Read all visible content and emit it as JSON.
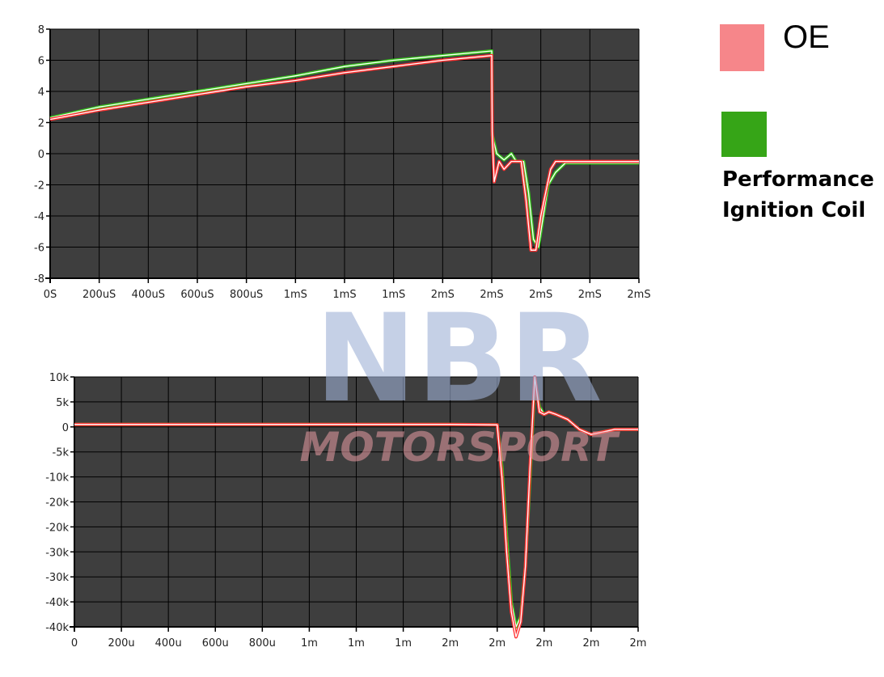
{
  "legend": {
    "items": [
      {
        "label": "OE",
        "color": "#f6868a"
      },
      {
        "label": "Performance Ignition Coil",
        "color": "#36a517"
      }
    ]
  },
  "watermark": {
    "text_top": "NBR",
    "text_bottom": "MOTORSPORT",
    "color_top": "#9fb1d6",
    "color_bottom": "#e89aa3"
  },
  "chart_data": [
    {
      "type": "line",
      "title": "",
      "xlabel": "",
      "ylabel": "",
      "ylim": [
        -8,
        8
      ],
      "xlim": [
        0,
        2400
      ],
      "x_unit": "uS",
      "grid": true,
      "y_ticks": [
        "8",
        "6",
        "4",
        "2",
        "0",
        "-2",
        "-4",
        "-6",
        "-8"
      ],
      "x_ticks": [
        "0S",
        "200uS",
        "400uS",
        "600uS",
        "800uS",
        "1mS",
        "1mS",
        "1mS",
        "2mS",
        "2mS",
        "2mS",
        "2mS",
        "2mS"
      ],
      "series": [
        {
          "name": "Performance Ignition Coil",
          "color": "#36c41c",
          "x": [
            0,
            200,
            400,
            600,
            800,
            1000,
            1200,
            1400,
            1600,
            1800,
            1802,
            1820,
            1850,
            1880,
            1900,
            1930,
            1950,
            1970,
            1990,
            2000,
            2030,
            2060,
            2100,
            2200,
            2400
          ],
          "y": [
            2.3,
            3.0,
            3.5,
            4.0,
            4.5,
            5.0,
            5.6,
            6.0,
            6.3,
            6.6,
            1.2,
            0.0,
            -0.4,
            0.0,
            -0.5,
            -0.5,
            -2.5,
            -5.5,
            -6.0,
            -5.0,
            -2.0,
            -1.2,
            -0.6,
            -0.6,
            -0.6
          ]
        },
        {
          "name": "OE",
          "color": "#ff3030",
          "x": [
            0,
            200,
            400,
            600,
            800,
            1000,
            1200,
            1400,
            1600,
            1800,
            1802,
            1810,
            1830,
            1850,
            1880,
            1920,
            1940,
            1960,
            1980,
            2000,
            2020,
            2040,
            2060,
            2100,
            2200,
            2400
          ],
          "y": [
            2.2,
            2.8,
            3.3,
            3.8,
            4.3,
            4.7,
            5.2,
            5.6,
            6.0,
            6.3,
            1.4,
            -1.8,
            -0.5,
            -1.0,
            -0.5,
            -0.5,
            -3.0,
            -6.2,
            -6.2,
            -4.0,
            -2.5,
            -1.0,
            -0.5,
            -0.5,
            -0.5,
            -0.5
          ]
        }
      ]
    },
    {
      "type": "line",
      "title": "",
      "xlabel": "",
      "ylabel": "",
      "ylim": [
        -40,
        10
      ],
      "xlim": [
        0,
        2400
      ],
      "x_unit": "u",
      "grid": true,
      "y_ticks": [
        "10k",
        "5k",
        "0",
        "-5k",
        "-10k",
        "-20k",
        "-20k",
        "-30k",
        "-30k",
        "-40k",
        "-40k"
      ],
      "x_ticks": [
        "0",
        "200u",
        "400u",
        "600u",
        "800u",
        "1m",
        "1m",
        "1m",
        "2m",
        "2m",
        "2m",
        "2m",
        "2m"
      ],
      "series": [
        {
          "name": "Performance Ignition Coil",
          "color": "#36c41c",
          "x": [
            0,
            200,
            400,
            600,
            800,
            1000,
            1200,
            1400,
            1600,
            1800,
            1820,
            1840,
            1860,
            1880,
            1900,
            1920,
            1940,
            1960,
            1980,
            2000,
            2020,
            2050,
            2100,
            2150,
            2200,
            2300,
            2400
          ],
          "y": [
            0.5,
            0.5,
            0.5,
            0.5,
            0.5,
            0.5,
            0.5,
            0.5,
            0.5,
            0.4,
            -8,
            -22,
            -35,
            -40,
            -38,
            -28,
            -10,
            9,
            4,
            2.5,
            3,
            2.5,
            1.5,
            -0.5,
            -1.5,
            -0.5,
            -0.5
          ]
        },
        {
          "name": "OE",
          "color": "#ff3030",
          "x": [
            0,
            200,
            400,
            600,
            800,
            1000,
            1200,
            1400,
            1600,
            1800,
            1820,
            1840,
            1860,
            1880,
            1900,
            1920,
            1940,
            1960,
            1980,
            2000,
            2020,
            2050,
            2100,
            2150,
            2200,
            2300,
            2400
          ],
          "y": [
            0.5,
            0.5,
            0.5,
            0.5,
            0.5,
            0.5,
            0.5,
            0.5,
            0.5,
            0.4,
            -10,
            -25,
            -37,
            -42,
            -39,
            -28,
            -8,
            10,
            3,
            2.5,
            3,
            2.5,
            1.5,
            -0.5,
            -1.5,
            -0.5,
            -0.5
          ]
        }
      ]
    }
  ]
}
